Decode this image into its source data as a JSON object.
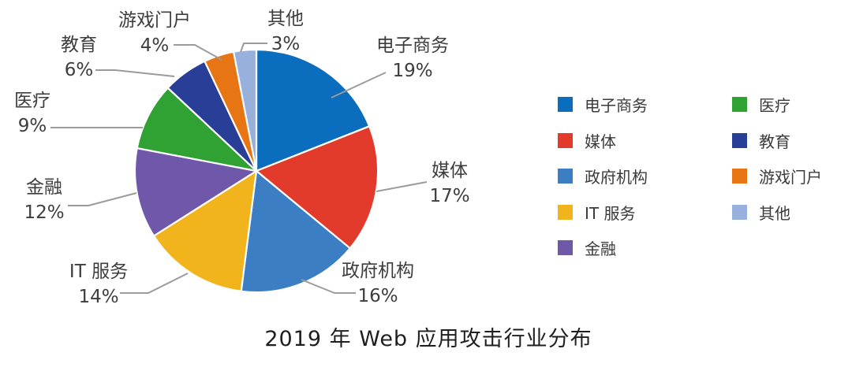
{
  "title": "2019 年 Web 应用攻击行业分布",
  "chart_data": {
    "type": "pie",
    "title": "2019 年 Web 应用攻击行业分布",
    "unit": "%",
    "start_angle_deg": 0,
    "direction": "clockwise",
    "grid": false,
    "legend_position": "right",
    "callout_labels": true,
    "slices": [
      {
        "label": "电子商务",
        "value": 19,
        "percent_label": "19%",
        "color": "#0b6dbd"
      },
      {
        "label": "媒体",
        "value": 17,
        "percent_label": "17%",
        "color": "#e23b2c"
      },
      {
        "label": "政府机构",
        "value": 16,
        "percent_label": "16%",
        "color": "#3b7ec4"
      },
      {
        "label": "IT 服务",
        "value": 14,
        "percent_label": "14%",
        "color": "#f1b41c"
      },
      {
        "label": "金融",
        "value": 12,
        "percent_label": "12%",
        "color": "#6f58a9"
      },
      {
        "label": "医疗",
        "value": 9,
        "percent_label": "9%",
        "color": "#2fa233"
      },
      {
        "label": "教育",
        "value": 6,
        "percent_label": "6%",
        "color": "#293f97"
      },
      {
        "label": "游戏门户",
        "value": 4,
        "percent_label": "4%",
        "color": "#e87513"
      },
      {
        "label": "其他",
        "value": 3,
        "percent_label": "3%",
        "color": "#97b0dc"
      }
    ],
    "legend_columns": [
      [
        0,
        1,
        2,
        3,
        4
      ],
      [
        5,
        6,
        7,
        8
      ]
    ]
  }
}
